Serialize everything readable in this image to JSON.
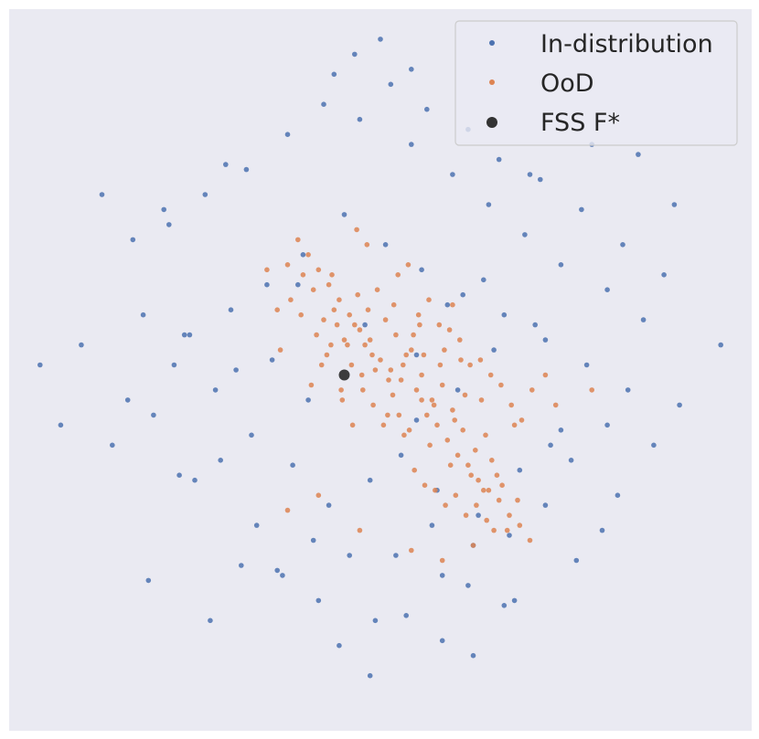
{
  "chart_data": {
    "type": "scatter",
    "title": "",
    "xlabel": "",
    "ylabel": "",
    "axes_visible": false,
    "grid": false,
    "background_color": "#eaeaf2",
    "xlim": [
      -3.6,
      3.6
    ],
    "ylim": [
      -3.6,
      3.6
    ],
    "legend": {
      "placement": "top-right",
      "entries": [
        {
          "label": "In-distribution",
          "color": "#4c72b0",
          "marker": "dot"
        },
        {
          "label": "OoD",
          "color": "#dd8452",
          "marker": "dot"
        },
        {
          "label": "FSS F*",
          "color": "#333333",
          "marker": "large-dot"
        }
      ]
    },
    "series": [
      {
        "name": "In-distribution",
        "color": "#4c72b0",
        "distribution": "isotropic gaussian cloud centred near (0, 0)",
        "x": [
          -3.3,
          -2.9,
          -3.1,
          -2.6,
          -2.3,
          -2.45,
          -2.0,
          -2.2,
          -1.9,
          -1.55,
          -1.8,
          -1.2,
          -1.35,
          -0.95,
          -0.6,
          -0.4,
          -0.1,
          0.25,
          0.6,
          0.9,
          1.25,
          1.6,
          1.9,
          2.3,
          2.65,
          2.9,
          3.3,
          2.55,
          2.2,
          1.75,
          1.4,
          1.05,
          0.7,
          0.3,
          -0.2,
          -0.55,
          -0.9,
          -1.3,
          -1.7,
          -2.05,
          -2.4,
          0.1,
          0.45,
          0.85,
          1.15,
          1.55,
          1.95,
          2.35,
          2.75,
          -0.75,
          -1.1,
          -1.45,
          -1.85,
          -0.35,
          0.05,
          0.4,
          0.8,
          1.2,
          1.6,
          2.0,
          2.4,
          -0.1,
          -0.5,
          -0.85,
          -1.25,
          -1.6,
          0.2,
          0.55,
          0.95,
          1.35,
          1.75,
          -0.7,
          -1.05,
          -1.4,
          0.35,
          0.75,
          1.1,
          1.5,
          1.85,
          2.2,
          -0.25,
          0.0,
          0.3,
          -0.45,
          0.6,
          0.9,
          1.3,
          -1.0,
          -0.65,
          -0.05,
          0.15,
          0.5,
          0.85,
          1.2,
          -1.95,
          -2.25,
          -1.65,
          -0.3,
          0.65,
          1.45,
          2.05,
          2.5,
          2.85,
          -2.7,
          -2.1,
          -1.5,
          1.0,
          0.35,
          -0.15,
          -0.8,
          1.65,
          2.15
        ],
        "y": [
          0.05,
          0.25,
          -0.55,
          -0.75,
          0.55,
          -0.3,
          0.05,
          -0.45,
          0.35,
          -0.9,
          -1.1,
          -1.55,
          -1.95,
          -2.05,
          -2.3,
          -2.75,
          -3.05,
          -2.45,
          -2.05,
          -1.75,
          -1.65,
          -1.35,
          -1.9,
          -1.25,
          -0.75,
          -0.35,
          0.25,
          0.5,
          0.8,
          1.05,
          1.35,
          1.65,
          1.95,
          2.25,
          2.5,
          2.65,
          2.35,
          2.0,
          1.75,
          1.45,
          1.3,
          2.85,
          2.6,
          2.4,
          2.1,
          1.9,
          1.6,
          1.25,
          0.95,
          1.15,
          0.85,
          0.6,
          0.35,
          1.55,
          1.25,
          1.0,
          0.75,
          0.55,
          0.3,
          0.05,
          -0.2,
          -1.1,
          -1.35,
          -0.95,
          -0.65,
          -0.2,
          -0.85,
          -1.2,
          -1.45,
          -1.0,
          -0.6,
          -0.3,
          0.1,
          0.0,
          -0.5,
          -0.2,
          0.2,
          0.45,
          -0.9,
          -0.55,
          3.15,
          3.3,
          3.0,
          2.95,
          -2.7,
          -2.85,
          -2.3,
          -2.0,
          -1.7,
          -2.5,
          -1.85,
          -1.55,
          -2.15,
          -2.35,
          -1.05,
          -2.1,
          -2.5,
          -1.85,
          0.65,
          1.95,
          2.25,
          2.15,
          1.65,
          1.75,
          1.6,
          2.05,
          0.9,
          0.15,
          0.45,
          0.85,
          -0.75,
          -1.6
        ]
      },
      {
        "name": "OoD",
        "color": "#dd8452",
        "distribution": "dense anisotropic cloud centred near (0.25, 0.1), elongated from upper-left to lower-right",
        "x": [
          0.0,
          0.1,
          0.2,
          0.3,
          0.4,
          0.5,
          0.6,
          0.7,
          0.8,
          -0.1,
          -0.2,
          -0.3,
          -0.4,
          -0.5,
          -0.6,
          -0.7,
          -0.8,
          -0.9,
          -1.0,
          0.15,
          0.25,
          0.35,
          0.45,
          0.55,
          0.65,
          0.75,
          0.85,
          0.95,
          1.05,
          1.15,
          1.25,
          1.35,
          1.45,
          -0.05,
          -0.15,
          -0.25,
          -0.35,
          -0.45,
          -0.55,
          -0.65,
          -0.75,
          0.05,
          0.12,
          0.22,
          0.32,
          0.42,
          0.52,
          0.62,
          0.72,
          0.82,
          0.92,
          1.02,
          -0.12,
          -0.22,
          -0.32,
          -0.42,
          -0.52,
          -0.62,
          0.18,
          0.28,
          0.38,
          0.48,
          0.58,
          0.68,
          0.78,
          0.88,
          0.98,
          1.08,
          1.18,
          0.08,
          -0.08,
          -0.18,
          -0.28,
          -0.38,
          -0.48,
          0.33,
          0.43,
          0.53,
          0.63,
          0.73,
          0.83,
          0.93,
          1.03,
          1.13,
          1.23,
          1.33,
          0.03,
          -0.03,
          0.13,
          0.23,
          -0.13,
          -0.23,
          0.37,
          0.47,
          0.57,
          0.67,
          0.77,
          0.87,
          0.97,
          1.07,
          1.17,
          1.27,
          1.37,
          1.47,
          0.27,
          0.17,
          0.07,
          -0.07,
          -0.17,
          -0.27,
          -0.37,
          -0.47,
          -0.57,
          -0.67,
          -0.77,
          -0.87,
          -0.97,
          1.6,
          1.7,
          1.1,
          0.9,
          0.6,
          0.3,
          -0.2,
          -0.6,
          -0.9,
          -1.1,
          0.4,
          0.7,
          1.0,
          1.3,
          2.05
        ],
        "y": [
          0.1,
          0.0,
          -0.1,
          0.2,
          -0.05,
          -0.3,
          -0.15,
          -0.4,
          -0.6,
          0.3,
          0.4,
          0.55,
          0.7,
          0.85,
          1.0,
          1.15,
          1.3,
          1.05,
          0.6,
          0.35,
          0.15,
          -0.2,
          -0.45,
          -0.55,
          -0.7,
          -0.85,
          -0.95,
          -1.1,
          -1.2,
          -1.3,
          -1.45,
          -1.55,
          -1.7,
          0.0,
          0.25,
          0.45,
          0.3,
          0.6,
          0.5,
          0.8,
          0.95,
          0.5,
          -0.25,
          0.05,
          0.35,
          0.15,
          -0.35,
          0.2,
          -0.5,
          -0.25,
          -0.8,
          -0.65,
          0.6,
          0.75,
          0.25,
          0.45,
          0.15,
          0.35,
          -0.45,
          -0.6,
          0.45,
          -0.75,
          0.05,
          -0.95,
          0.1,
          -1.05,
          -0.3,
          -0.9,
          -1.15,
          -0.1,
          0.15,
          -0.05,
          0.05,
          -0.2,
          0.25,
          -1.0,
          -1.15,
          -1.2,
          -1.35,
          -1.25,
          -1.45,
          -1.35,
          -1.5,
          -1.05,
          -1.6,
          -1.3,
          -0.55,
          0.8,
          0.65,
          -0.65,
          1.25,
          1.4,
          0.55,
          0.7,
          0.45,
          0.4,
          0.3,
          0.05,
          0.1,
          -0.05,
          -0.15,
          -0.35,
          -0.5,
          -0.2,
          1.05,
          0.95,
          -0.45,
          -0.35,
          -0.2,
          -0.55,
          -0.3,
          0.95,
          0.05,
          -0.15,
          0.55,
          0.7,
          0.2,
          -0.05,
          -0.35,
          -1.6,
          -1.75,
          -1.9,
          -1.8,
          -1.6,
          -1.25,
          -1.4,
          1.0,
          -0.3,
          0.65,
          -1.2,
          -0.55,
          -0.2
        ]
      },
      {
        "name": "FSS F*",
        "color": "#333333",
        "x": [
          -0.35
        ],
        "y": [
          -0.05
        ]
      }
    ]
  }
}
